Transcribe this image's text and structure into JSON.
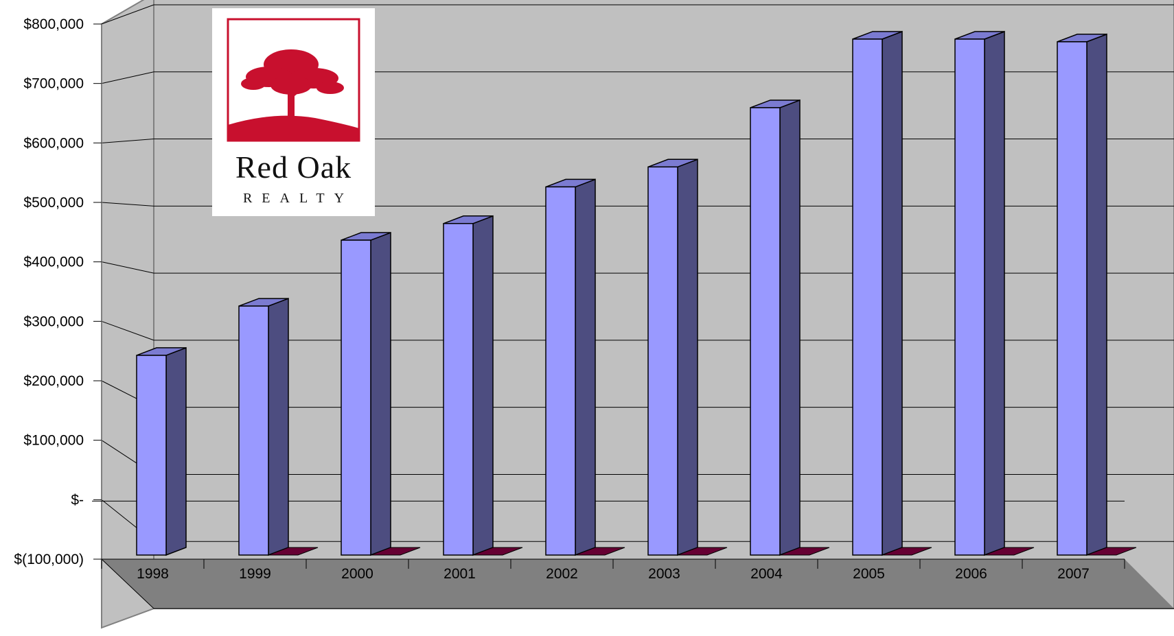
{
  "colors": {
    "wall": "#c0c0c0",
    "wall_edge": "#808080",
    "floor": "#808080",
    "side_wall": "#c0c0c0",
    "bar_front": "#9999ff",
    "bar_side": "#4d4d80",
    "bar_top": "#7b7bd1",
    "neg_series": "#660033",
    "logo_red": "#c8102e"
  },
  "logo": {
    "name": "Red Oak",
    "tagline": "REALTY"
  },
  "chart_data": {
    "type": "bar",
    "categories": [
      "1998",
      "1999",
      "2000",
      "2001",
      "2002",
      "2003",
      "2004",
      "2005",
      "2006",
      "2007"
    ],
    "series": [
      {
        "values": [
          300000,
          374000,
          473000,
          498000,
          553000,
          583000,
          672000,
          775000,
          775000,
          771000
        ]
      },
      {
        "values": [
          0,
          0,
          0,
          0,
          0,
          0,
          0,
          0,
          0,
          0
        ]
      }
    ],
    "ylim": [
      -100000,
      800000
    ],
    "ytick_values": [
      800000,
      700000,
      600000,
      500000,
      400000,
      300000,
      200000,
      100000,
      0,
      -100000
    ],
    "ytick_labels": [
      "$800,000",
      "$700,000",
      "$600,000",
      "$500,000",
      "$400,000",
      "$300,000",
      "$200,000",
      "$100,000",
      "$-",
      "$(100,000)"
    ],
    "grid": true,
    "style": "3d-column"
  }
}
